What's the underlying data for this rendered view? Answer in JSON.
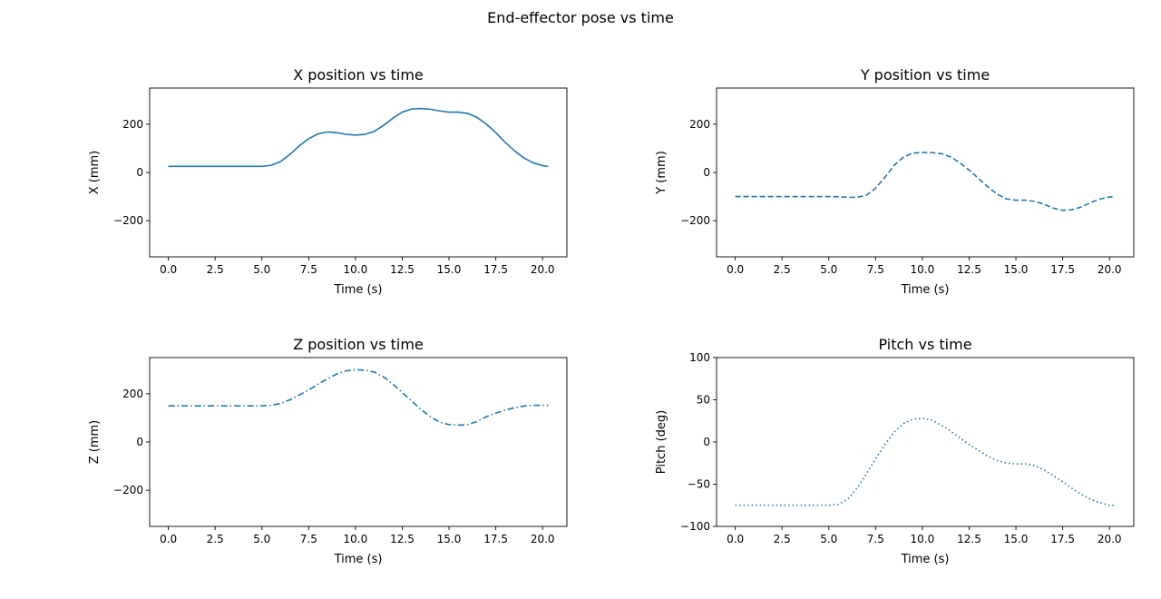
{
  "figure": {
    "suptitle": "End-effector pose vs time"
  },
  "chart_data": [
    {
      "type": "line",
      "title": "X position vs time",
      "xlabel": "Time (s)",
      "ylabel": "X (mm)",
      "xlim": [
        -1.0,
        21.3
      ],
      "ylim": [
        -350,
        350
      ],
      "xticks": [
        0.0,
        2.5,
        5.0,
        7.5,
        10.0,
        12.5,
        15.0,
        17.5,
        20.0
      ],
      "xtick_labels": [
        "0.0",
        "2.5",
        "5.0",
        "7.5",
        "10.0",
        "12.5",
        "15.0",
        "17.5",
        "20.0"
      ],
      "yticks": [
        -200,
        0,
        200
      ],
      "ytick_labels": [
        "−200",
        "0",
        "200"
      ],
      "line_style": "solid",
      "color": "#1f77b4",
      "x": [
        0,
        2,
        4,
        5,
        5.5,
        6,
        6.5,
        7,
        7.5,
        8,
        8.5,
        9,
        9.5,
        10,
        10.5,
        11,
        11.5,
        12,
        12.5,
        13,
        13.5,
        14,
        14.5,
        15,
        15.5,
        16,
        16.5,
        17,
        17.5,
        18,
        18.5,
        19,
        19.5,
        20,
        20.3
      ],
      "y": [
        25,
        25,
        25,
        25,
        30,
        45,
        75,
        110,
        140,
        160,
        168,
        165,
        158,
        155,
        158,
        170,
        195,
        225,
        250,
        263,
        265,
        262,
        255,
        250,
        250,
        245,
        228,
        200,
        165,
        125,
        90,
        60,
        40,
        28,
        25
      ]
    },
    {
      "type": "line",
      "title": "Y position vs time",
      "xlabel": "Time (s)",
      "ylabel": "Y (mm)",
      "xlim": [
        -1.0,
        21.3
      ],
      "ylim": [
        -350,
        350
      ],
      "xticks": [
        0.0,
        2.5,
        5.0,
        7.5,
        10.0,
        12.5,
        15.0,
        17.5,
        20.0
      ],
      "xtick_labels": [
        "0.0",
        "2.5",
        "5.0",
        "7.5",
        "10.0",
        "12.5",
        "15.0",
        "17.5",
        "20.0"
      ],
      "yticks": [
        -200,
        0,
        200
      ],
      "ytick_labels": [
        "−200",
        "0",
        "200"
      ],
      "line_style": "dashed",
      "color": "#1f77b4",
      "x": [
        0,
        2,
        4,
        5,
        5.5,
        6,
        6.5,
        7,
        7.5,
        8,
        8.5,
        9,
        9.5,
        10,
        10.5,
        11,
        11.5,
        12,
        12.5,
        13,
        13.5,
        14,
        14.5,
        15,
        15.5,
        16,
        16.5,
        17,
        17.5,
        18,
        18.5,
        19,
        19.5,
        20,
        20.3
      ],
      "y": [
        -100,
        -100,
        -100,
        -100,
        -101,
        -103,
        -103,
        -95,
        -65,
        -20,
        30,
        65,
        80,
        83,
        82,
        78,
        65,
        40,
        10,
        -25,
        -60,
        -90,
        -110,
        -115,
        -115,
        -120,
        -132,
        -148,
        -157,
        -155,
        -143,
        -125,
        -110,
        -102,
        -100
      ]
    },
    {
      "type": "line",
      "title": "Z position vs time",
      "xlabel": "Time (s)",
      "ylabel": "Z (mm)",
      "xlim": [
        -1.0,
        21.3
      ],
      "ylim": [
        -350,
        350
      ],
      "xticks": [
        0.0,
        2.5,
        5.0,
        7.5,
        10.0,
        12.5,
        15.0,
        17.5,
        20.0
      ],
      "xtick_labels": [
        "0.0",
        "2.5",
        "5.0",
        "7.5",
        "10.0",
        "12.5",
        "15.0",
        "17.5",
        "20.0"
      ],
      "yticks": [
        -200,
        0,
        200
      ],
      "ytick_labels": [
        "−200",
        "0",
        "200"
      ],
      "line_style": "dashdot",
      "color": "#1f77b4",
      "x": [
        0,
        2,
        4,
        5,
        5.5,
        6,
        6.5,
        7,
        7.5,
        8,
        8.5,
        9,
        9.5,
        10,
        10.5,
        11,
        11.5,
        12,
        12.5,
        13,
        13.5,
        14,
        14.5,
        15,
        15.5,
        16,
        16.5,
        17,
        17.5,
        18,
        18.5,
        19,
        19.5,
        20,
        20.3
      ],
      "y": [
        150,
        150,
        150,
        150,
        152,
        160,
        175,
        195,
        215,
        240,
        262,
        282,
        295,
        300,
        298,
        290,
        270,
        240,
        205,
        170,
        135,
        105,
        82,
        72,
        70,
        72,
        85,
        105,
        120,
        132,
        142,
        149,
        152,
        152,
        152
      ]
    },
    {
      "type": "line",
      "title": "Pitch vs time",
      "xlabel": "Time (s)",
      "ylabel": "Pitch (deg)",
      "xlim": [
        -1.0,
        21.3
      ],
      "ylim": [
        -100,
        100
      ],
      "xticks": [
        0.0,
        2.5,
        5.0,
        7.5,
        10.0,
        12.5,
        15.0,
        17.5,
        20.0
      ],
      "xtick_labels": [
        "0.0",
        "2.5",
        "5.0",
        "7.5",
        "10.0",
        "12.5",
        "15.0",
        "17.5",
        "20.0"
      ],
      "yticks": [
        -100,
        -50,
        0,
        50,
        100
      ],
      "ytick_labels": [
        "−100",
        "−50",
        "0",
        "50",
        "100"
      ],
      "line_style": "dotted",
      "color": "#1f77b4",
      "x": [
        0,
        2,
        4,
        5,
        5.5,
        6,
        6.5,
        7,
        7.5,
        8,
        8.5,
        9,
        9.5,
        10,
        10.5,
        11,
        11.5,
        12,
        12.5,
        13,
        13.5,
        14,
        14.5,
        15,
        15.5,
        16,
        16.5,
        17,
        17.5,
        18,
        18.5,
        19,
        19.5,
        20,
        20.3
      ],
      "y": [
        -75,
        -75,
        -75,
        -75,
        -74,
        -68,
        -55,
        -38,
        -20,
        -3,
        12,
        22,
        27,
        28,
        26,
        20,
        13,
        5,
        -3,
        -10,
        -17,
        -22,
        -25,
        -26,
        -26,
        -28,
        -33,
        -40,
        -47,
        -55,
        -62,
        -68,
        -72,
        -75,
        -75
      ]
    }
  ]
}
